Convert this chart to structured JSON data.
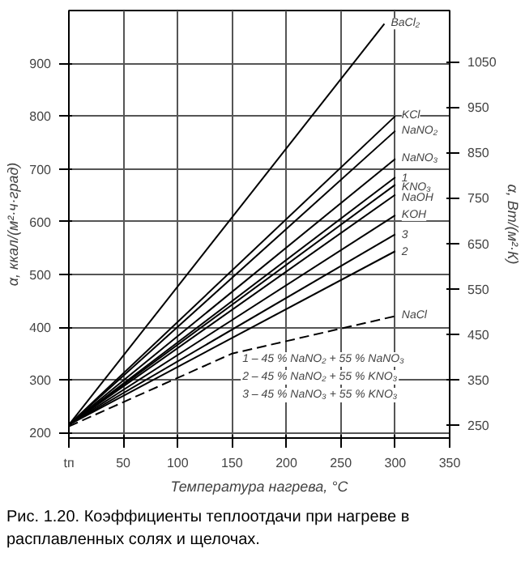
{
  "chart_data": {
    "type": "line",
    "xlabel": "Температура нагрева, °С",
    "ylabel": "α, ккал/(м²·ч·град)",
    "y2label": "α, Вт/(м²·К)",
    "xlim": [
      0,
      350
    ],
    "xticks": [
      {
        "value": 0,
        "label": "tп"
      },
      50,
      100,
      150,
      200,
      250,
      300,
      350
    ],
    "ylim": [
      190,
      1000
    ],
    "yticks": [
      200,
      300,
      400,
      500,
      600,
      700,
      800,
      900
    ],
    "y2lim": [
      221,
      1163
    ],
    "y2ticks": [
      250,
      350,
      450,
      550,
      650,
      750,
      850,
      950,
      1050
    ],
    "grid": true,
    "legend": false,
    "marker": "none",
    "series": [
      {
        "name": "BaCl₂",
        "color": "#000000",
        "x": [
          0,
          290
        ],
        "values": [
          215,
          975
        ]
      },
      {
        "name": "KCl",
        "color": "#000000",
        "x": [
          0,
          300
        ],
        "values": [
          215,
          800
        ]
      },
      {
        "name": "NaNO₂",
        "color": "#000000",
        "x": [
          0,
          300
        ],
        "values": [
          215,
          772
        ]
      },
      {
        "name": "NaNO₃",
        "color": "#000000",
        "x": [
          0,
          300
        ],
        "values": [
          215,
          719
        ]
      },
      {
        "name": "1",
        "color": "#000000",
        "x": [
          0,
          300
        ],
        "values": [
          215,
          684
        ]
      },
      {
        "name": "KNO₃",
        "color": "#000000",
        "x": [
          0,
          300
        ],
        "values": [
          215,
          670
        ]
      },
      {
        "name": "NaOH",
        "color": "#000000",
        "x": [
          0,
          300
        ],
        "values": [
          215,
          651
        ]
      },
      {
        "name": "KOH",
        "color": "#000000",
        "x": [
          0,
          300
        ],
        "values": [
          215,
          612
        ]
      },
      {
        "name": "3",
        "color": "#000000",
        "x": [
          0,
          300
        ],
        "values": [
          215,
          576
        ]
      },
      {
        "name": "2",
        "color": "#000000",
        "x": [
          0,
          300
        ],
        "values": [
          215,
          544
        ]
      },
      {
        "name": "NaCl",
        "color": "#000000",
        "x": [
          0,
          150,
          300
        ],
        "values": [
          212,
          350,
          421
        ],
        "line_style": "dashed"
      }
    ],
    "annotations": [
      "1 – 45 % NaNO₂ + 55 % NaNO₃",
      "2 – 45 % NaNO₂ + 55 % KNO₃",
      "3 – 45 % NaNO₃ + 55 % KNO₃",
      "Рис. 1.20. Коэффициенты теплоотдачи при нагреве в расплавленных солях и щелочах."
    ]
  }
}
